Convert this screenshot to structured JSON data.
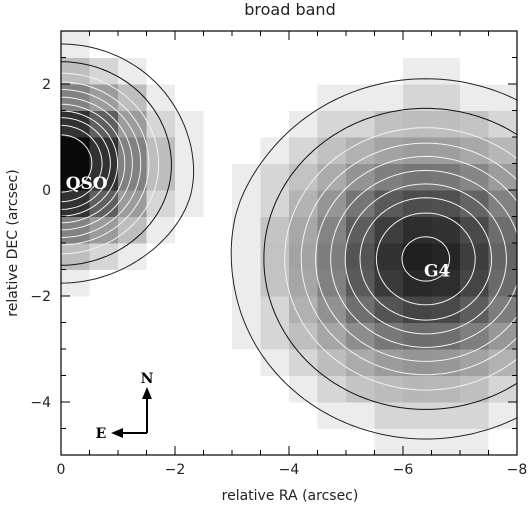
{
  "chart_data": {
    "type": "heatmap",
    "title": "broad band",
    "xlabel": "relative RA (arcsec)",
    "ylabel": "relative DEC (arcsec)",
    "xlim": [
      0,
      -8
    ],
    "ylim": [
      -5,
      3
    ],
    "xticks": [
      0,
      -2,
      -4,
      -6,
      -8
    ],
    "yticks": [
      -4,
      -2,
      0,
      2
    ],
    "xtick_labels": [
      "0",
      "−2",
      "−4",
      "−6",
      "−8"
    ],
    "ytick_labels": [
      "−4",
      "−2",
      "0",
      "2"
    ],
    "colormap": "greyscale (white = low, black = high)",
    "sources": [
      {
        "name": "QSO",
        "ra": 0.0,
        "dec": 0.5,
        "peak": 1.0,
        "sigma": 0.95
      },
      {
        "name": "G4",
        "ra": -6.4,
        "dec": -1.3,
        "peak": 0.78,
        "sigma": 1.5
      }
    ],
    "annotations": [
      {
        "text": "QSO",
        "ra": -0.45,
        "dec": 0.1
      },
      {
        "text": "G4",
        "ra": -6.6,
        "dec": -1.55
      }
    ],
    "compass": {
      "north_label": "N",
      "east_label": "E"
    },
    "contours": {
      "solid_black": [
        0.13
      ],
      "dashed_black": [
        0.06
      ],
      "white": [
        0.2,
        0.27,
        0.34,
        0.42,
        0.5,
        0.58,
        0.66,
        0.75,
        0.85
      ]
    }
  }
}
